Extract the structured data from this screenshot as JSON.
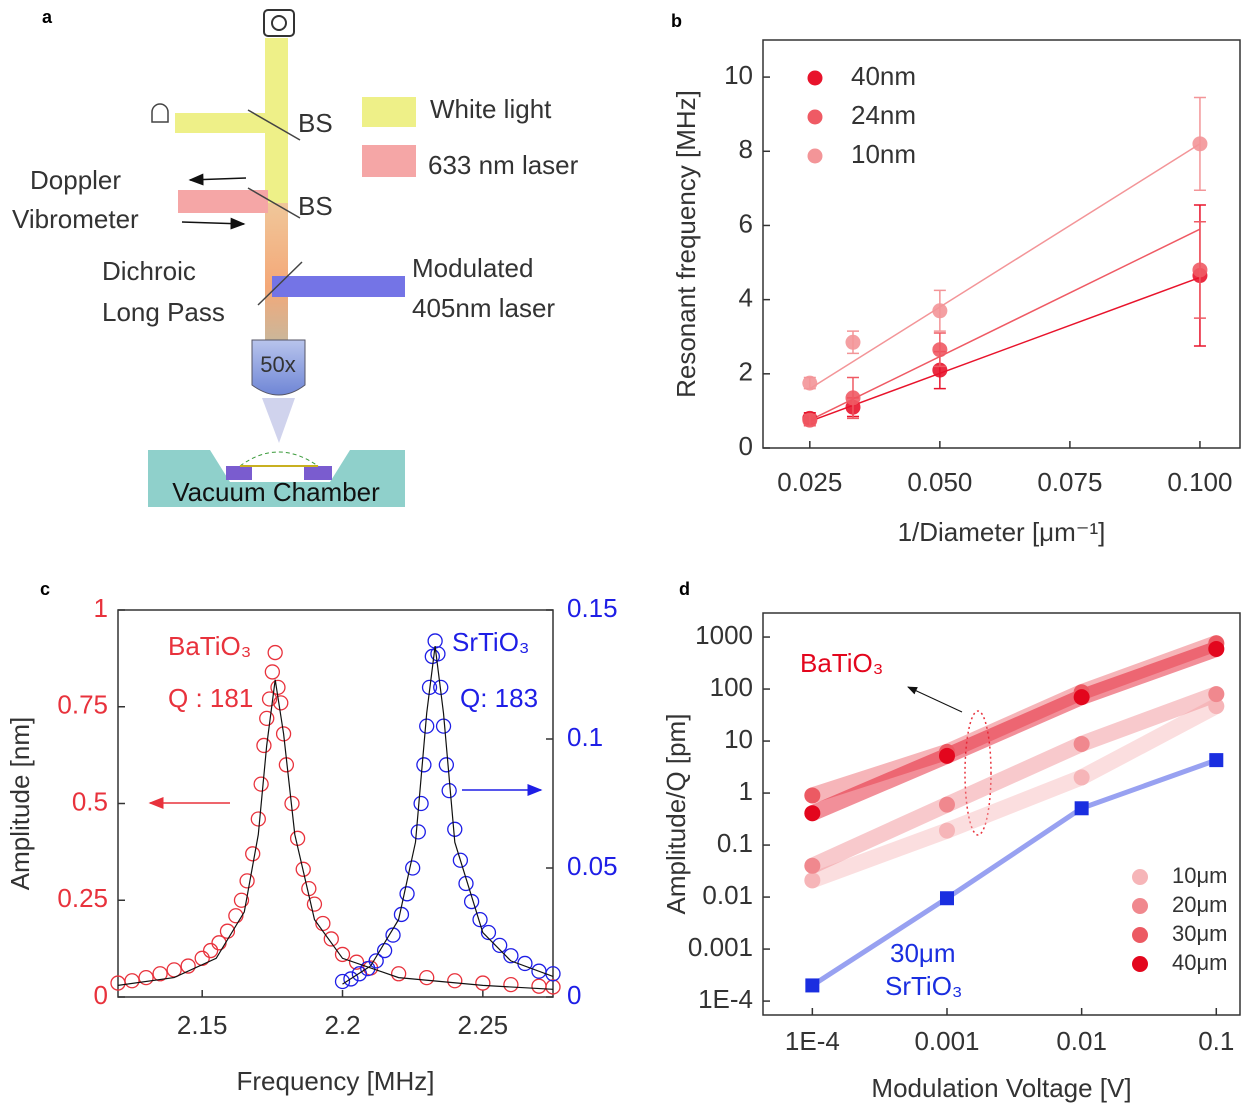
{
  "panel_labels": [
    "a",
    "b",
    "c",
    "d"
  ],
  "diagram": {
    "bs_1": "BS",
    "bs_2": "BS",
    "white_light": "White light",
    "laser_633": "633 nm laser",
    "doppler_1": "Doppler",
    "doppler_2": "Vibrometer",
    "dichroic_1": "Dichroic",
    "dichroic_2": "Long Pass",
    "modulated_1": "Modulated",
    "modulated_2": "405nm laser",
    "objective": "50x",
    "chamber": "Vacuum Chamber"
  },
  "chart_data": [
    {
      "type": "errorbar_scatter",
      "x_label": "1/Diameter [μm⁻¹]",
      "y_label": "Resonant frequency [MHz]",
      "x": [
        0.025,
        0.0333,
        0.05,
        0.1
      ],
      "xlim": [
        0.016,
        0.1077
      ],
      "ylim": [
        0,
        11
      ],
      "xticks": [
        {
          "value": 0.025,
          "label": "0.025"
        },
        {
          "value": 0.05,
          "label": "0.050"
        },
        {
          "value": 0.075,
          "label": "0.075"
        },
        {
          "value": 0.1,
          "label": "0.100"
        }
      ],
      "yticks": [
        0,
        2,
        4,
        6,
        8,
        10
      ],
      "legend": "upper left",
      "fit_x": [
        0.025,
        0.1
      ],
      "series": [
        {
          "name": "40nm",
          "color": "#e8132b",
          "values": [
            0.8,
            1.1,
            2.1,
            4.65
          ],
          "errors": [
            0.15,
            0.25,
            0.5,
            1.9
          ],
          "fit_values": [
            0.72,
            4.6
          ]
        },
        {
          "name": "24nm",
          "color": "#ef5a64",
          "values": [
            0.75,
            1.35,
            2.65,
            4.8
          ],
          "errors": [
            0.15,
            0.55,
            0.45,
            1.3
          ],
          "fit_values": [
            0.75,
            5.9
          ]
        },
        {
          "name": "10nm",
          "color": "#f39598",
          "values": [
            1.75,
            2.85,
            3.7,
            8.2
          ],
          "errors": [
            0.15,
            0.3,
            0.55,
            1.25
          ],
          "fit_values": [
            1.6,
            8.2
          ]
        }
      ]
    },
    {
      "type": "dual_axis_scatter",
      "x_label": "Frequency [MHz]",
      "y_label": "Amplitude [nm]",
      "xlim": [
        2.12,
        2.275
      ],
      "ylim": [
        0,
        1
      ],
      "y2lim": [
        0,
        0.15
      ],
      "xticks": [
        2.15,
        2.2,
        2.25
      ],
      "yticks": [
        0,
        0.25,
        0.5,
        0.75,
        1
      ],
      "y2ticks": [
        0,
        0.05,
        0.1,
        0.15
      ],
      "annotations": [
        "BaTiO₃",
        "Q : 181",
        "SrTiO₃",
        "Q: 183"
      ],
      "series": [
        {
          "color": "#e8323c",
          "axis": "y",
          "x": [
            2.12,
            2.125,
            2.13,
            2.135,
            2.14,
            2.145,
            2.15,
            2.153,
            2.156,
            2.159,
            2.162,
            2.164,
            2.166,
            2.168,
            2.17,
            2.171,
            2.172,
            2.173,
            2.174,
            2.175,
            2.176,
            2.177,
            2.178,
            2.179,
            2.18,
            2.182,
            2.184,
            2.186,
            2.188,
            2.19,
            2.193,
            2.196,
            2.2,
            2.205,
            2.21,
            2.22,
            2.23,
            2.24,
            2.25,
            2.26,
            2.27,
            2.275
          ],
          "values": [
            0.036,
            0.042,
            0.05,
            0.06,
            0.07,
            0.08,
            0.1,
            0.12,
            0.14,
            0.17,
            0.21,
            0.25,
            0.3,
            0.37,
            0.46,
            0.55,
            0.65,
            0.72,
            0.77,
            0.84,
            0.89,
            0.8,
            0.76,
            0.68,
            0.6,
            0.5,
            0.41,
            0.33,
            0.28,
            0.24,
            0.19,
            0.15,
            0.11,
            0.09,
            0.075,
            0.06,
            0.05,
            0.042,
            0.036,
            0.032,
            0.028,
            0.026
          ],
          "fit_x": [
            2.12,
            2.14,
            2.155,
            2.165,
            2.17,
            2.173,
            2.176,
            2.179,
            2.183,
            2.19,
            2.2,
            2.22,
            2.25,
            2.275
          ],
          "fit_values": [
            0.03,
            0.05,
            0.1,
            0.22,
            0.42,
            0.65,
            0.82,
            0.68,
            0.42,
            0.2,
            0.1,
            0.05,
            0.03,
            0.02
          ]
        },
        {
          "color": "#1e1ee6",
          "axis": "y2",
          "x": [
            2.2,
            2.203,
            2.206,
            2.209,
            2.212,
            2.215,
            2.218,
            2.221,
            2.223,
            2.225,
            2.227,
            2.228,
            2.229,
            2.23,
            2.231,
            2.232,
            2.233,
            2.234,
            2.235,
            2.236,
            2.237,
            2.238,
            2.24,
            2.242,
            2.244,
            2.246,
            2.249,
            2.252,
            2.256,
            2.26,
            2.265,
            2.27,
            2.275
          ],
          "values": [
            0.006,
            0.007,
            0.009,
            0.011,
            0.014,
            0.018,
            0.024,
            0.032,
            0.04,
            0.05,
            0.064,
            0.075,
            0.09,
            0.105,
            0.12,
            0.132,
            0.138,
            0.133,
            0.12,
            0.105,
            0.09,
            0.08,
            0.065,
            0.053,
            0.044,
            0.037,
            0.03,
            0.025,
            0.02,
            0.016,
            0.013,
            0.01,
            0.009
          ],
          "fit_x": [
            2.2,
            2.21,
            2.22,
            2.226,
            2.23,
            2.233,
            2.236,
            2.24,
            2.25,
            2.26,
            2.275
          ],
          "fit_values": [
            0.005,
            0.012,
            0.03,
            0.06,
            0.11,
            0.136,
            0.11,
            0.06,
            0.025,
            0.014,
            0.008
          ]
        }
      ]
    },
    {
      "type": "log_line",
      "log_scale": true,
      "x_label": "Modulation Voltage [V]",
      "y_label": "Amplitude/Q [pm]",
      "x": [
        0.0001,
        0.001,
        0.01,
        0.1
      ],
      "xlim": [
        4.3e-05,
        0.15
      ],
      "ylim": [
        5.4e-05,
        2900
      ],
      "xticks": [
        {
          "value": 0.0001,
          "label": "1E-4"
        },
        0.001,
        0.01,
        0.1
      ],
      "yticks": [
        {
          "value": 0.0001,
          "label": "1E-4"
        },
        0.001,
        0.01,
        0.1,
        1,
        10,
        100,
        1000
      ],
      "legend": "lower right",
      "annotations": [
        "BaTiO₃",
        "30μm",
        "SrTiO₃"
      ],
      "series": [
        {
          "name": "10μm",
          "color": "#f6b5b8",
          "values": [
            0.021,
            0.19,
            2,
            47
          ]
        },
        {
          "name": "20μm",
          "color": "#f0888e",
          "values": [
            0.04,
            0.6,
            8.8,
            80
          ]
        },
        {
          "name": "30μm",
          "color": "#ec5a63",
          "values": [
            0.9,
            6.2,
            87,
            760
          ]
        },
        {
          "name": "40μm",
          "color": "#e3061d",
          "values": [
            0.41,
            5.2,
            70,
            590
          ]
        }
      ],
      "reference_series": {
        "color": "#1a2ee0",
        "values": [
          0.0002,
          0.0095,
          0.51,
          4.3
        ]
      }
    }
  ]
}
